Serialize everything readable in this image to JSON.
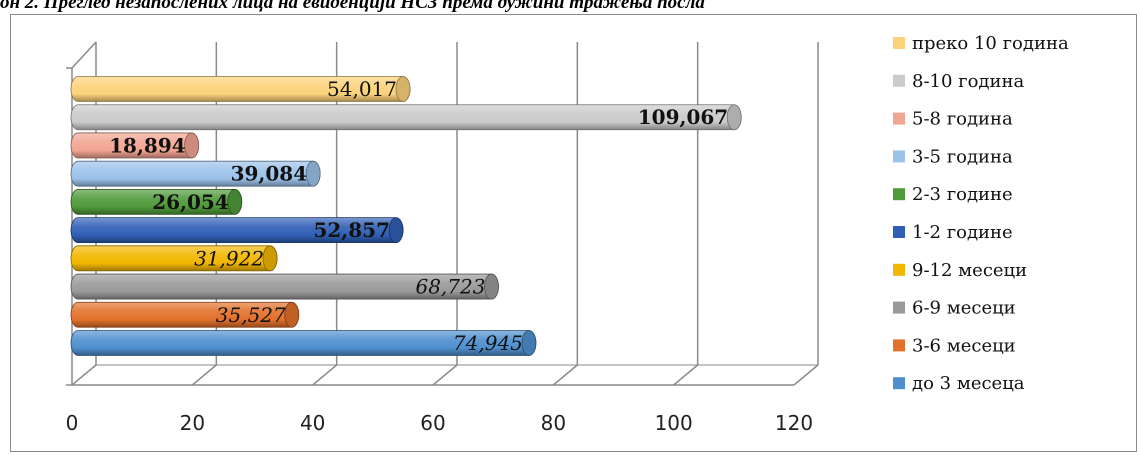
{
  "title": "он 2. Преглед незапослених лица на евиденцији НСЗ према дужини тражења посла",
  "chart_data": {
    "type": "bar",
    "orientation": "horizontal",
    "series": [
      {
        "name": "до 3 месеца",
        "value": 74.945,
        "label": "74,945",
        "color": "#4f8fce",
        "label_style": "italic"
      },
      {
        "name": "3-6 месеци",
        "value": 35.527,
        "label": "35,527",
        "color": "#e2712b",
        "label_style": "italic"
      },
      {
        "name": "6-9 месеци",
        "value": 68.723,
        "label": "68,723",
        "color": "#9a9a9a",
        "label_style": "italic"
      },
      {
        "name": "9-12 месеци",
        "value": 31.922,
        "label": "31,922",
        "color": "#f2b700",
        "label_style": "italic"
      },
      {
        "name": "1-2 године",
        "value": 52.857,
        "label": "52,857",
        "color": "#2f5fb5",
        "label_style": "bold"
      },
      {
        "name": "2-3 године",
        "value": 26.054,
        "label": "26,054",
        "color": "#4f9a3a",
        "label_style": "bold"
      },
      {
        "name": "3-5 година",
        "value": 39.084,
        "label": "39,084",
        "color": "#9cc2ea",
        "label_style": "bold"
      },
      {
        "name": "5-8 година",
        "value": 18.894,
        "label": "18,894",
        "color": "#f3a593",
        "label_style": "bold"
      },
      {
        "name": "8-10 година",
        "value": 109.067,
        "label": "109,067",
        "color": "#cbcbcb",
        "label_style": "bold"
      },
      {
        "name": "преко 10 година",
        "value": 54.017,
        "label": "54,017",
        "color": "#fcd37a",
        "label_style": "normal"
      }
    ],
    "xlim": [
      0,
      120
    ],
    "xticks": [
      "0",
      "20",
      "40",
      "60",
      "80",
      "100",
      "120"
    ],
    "grid": true,
    "legend_position": "right"
  }
}
